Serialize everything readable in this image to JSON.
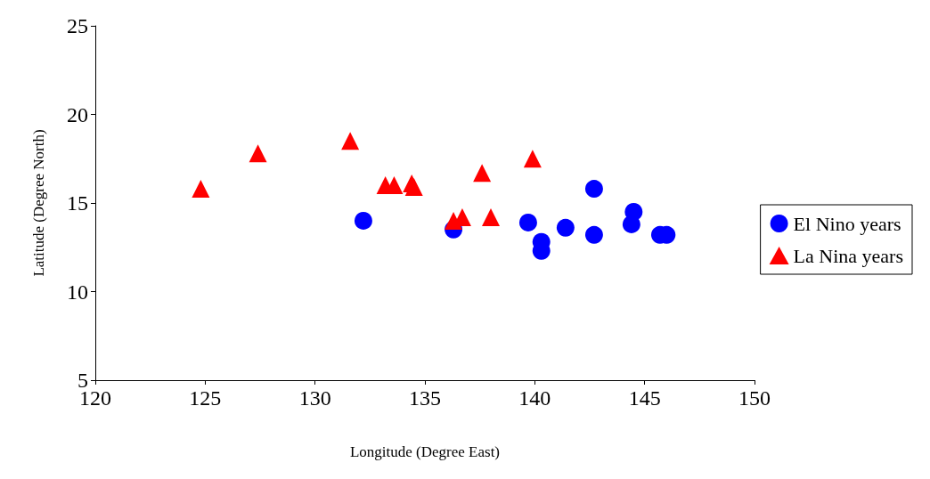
{
  "chart_data": {
    "type": "scatter",
    "xlabel": "Longitude (Degree East)",
    "ylabel": "Latitude (Degree North)",
    "xlim": [
      120,
      150
    ],
    "xticks": [
      120,
      125,
      130,
      135,
      140,
      145,
      150
    ],
    "ylim": [
      5,
      25
    ],
    "yticks": [
      5,
      10,
      15,
      20,
      25
    ],
    "grid": false,
    "legend": "right",
    "series": [
      {
        "name": "El Nino years",
        "color": "#0000ff",
        "marker": "circle",
        "x": [
          132.2,
          136.3,
          139.7,
          140.3,
          140.3,
          141.4,
          142.7,
          142.7,
          144.4,
          144.5,
          145.7,
          146.0
        ],
        "values": [
          14.0,
          13.5,
          13.9,
          12.8,
          12.3,
          13.6,
          13.2,
          15.8,
          13.8,
          14.5,
          13.2,
          13.2
        ]
      },
      {
        "name": "La Nina years",
        "color": "#ff0000",
        "marker": "triangle",
        "x": [
          124.8,
          127.4,
          131.6,
          133.2,
          133.6,
          134.4,
          134.5,
          136.3,
          136.7,
          137.6,
          138.0,
          139.9
        ],
        "values": [
          15.8,
          17.8,
          18.5,
          16.0,
          16.0,
          16.1,
          15.9,
          14.0,
          14.2,
          16.7,
          14.2,
          17.5
        ]
      }
    ]
  }
}
